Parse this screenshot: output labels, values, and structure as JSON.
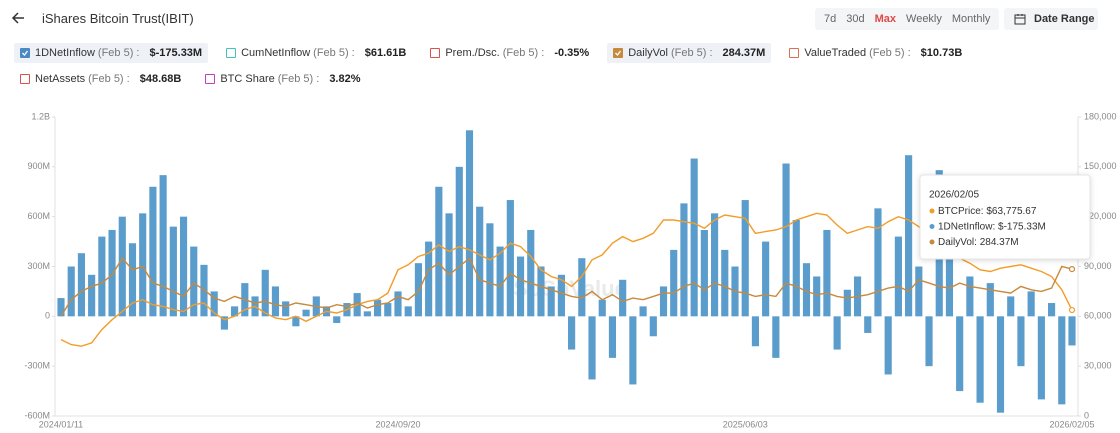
{
  "header": {
    "title": "iShares Bitcoin Trust(IBIT)",
    "range_buttons": [
      {
        "label": "7d",
        "active": false
      },
      {
        "label": "30d",
        "active": false
      },
      {
        "label": "Max",
        "active": true
      },
      {
        "label": "Weekly",
        "active": false
      },
      {
        "label": "Monthly",
        "active": false
      }
    ],
    "date_range": "Date Range"
  },
  "legend_chips": [
    {
      "label": "1DNetInflow",
      "date": "(Feb 5) :",
      "value": "$-175.33M",
      "checked": true,
      "color": "#4a8ac4"
    },
    {
      "label": "CumNetInflow",
      "date": "(Feb 5) :",
      "value": "$61.61B",
      "checked": false,
      "color": "#45c1c4"
    },
    {
      "label": "Prem./Dsc.",
      "date": "(Feb 5) :",
      "value": "-0.35%",
      "checked": false,
      "color": "#d9534f"
    },
    {
      "label": "DailyVol",
      "date": "(Feb 5) :",
      "value": "284.37M",
      "checked": true,
      "color": "#c7893c"
    },
    {
      "label": "ValueTraded",
      "date": "(Feb 5) :",
      "value": "$10.73B",
      "checked": false,
      "color": "#d9704f"
    },
    {
      "label": "NetAssets",
      "date": "(Feb 5) :",
      "value": "$48.68B",
      "checked": false,
      "color": "#d9534f"
    },
    {
      "label": "BTC Share",
      "date": "(Feb 5) :",
      "value": "3.82%",
      "checked": false,
      "color": "#c040c0"
    }
  ],
  "chart_data": {
    "type": "bar",
    "watermark": "SoSoValue",
    "categories": [
      "2024/01/11",
      null,
      null,
      null,
      null,
      null,
      null,
      null,
      null,
      null,
      null,
      null,
      null,
      null,
      null,
      null,
      null,
      null,
      null,
      null,
      null,
      null,
      null,
      null,
      null,
      null,
      null,
      null,
      null,
      null,
      null,
      null,
      null,
      "2024/09/20",
      null,
      null,
      null,
      null,
      null,
      null,
      null,
      null,
      null,
      null,
      null,
      null,
      null,
      null,
      null,
      null,
      null,
      null,
      null,
      null,
      null,
      null,
      null,
      null,
      null,
      null,
      null,
      null,
      null,
      null,
      null,
      null,
      null,
      "2025/06/03",
      null,
      null,
      null,
      null,
      null,
      null,
      null,
      null,
      null,
      null,
      null,
      null,
      null,
      null,
      null,
      null,
      null,
      null,
      null,
      null,
      null,
      null,
      null,
      null,
      null,
      null,
      null,
      null,
      null,
      null,
      null,
      "2026/02/05"
    ],
    "ylim": [
      -600,
      1200
    ],
    "yticks": [
      {
        "value": -600,
        "label": "-600M"
      },
      {
        "value": -300,
        "label": "-300M"
      },
      0,
      {
        "value": 300,
        "label": "300M"
      },
      {
        "value": 600,
        "label": "600M"
      },
      {
        "value": 900,
        "label": "900M"
      },
      {
        "value": 1200,
        "label": "1.2B"
      }
    ],
    "y2lim": [
      0,
      180000
    ],
    "y2ticks": [
      0,
      {
        "value": 30000,
        "label": "30,000"
      },
      {
        "value": 60000,
        "label": "60,000"
      },
      {
        "value": 90000,
        "label": "90,000"
      },
      {
        "value": 120000,
        "label": "120,000"
      },
      {
        "value": 150000,
        "label": "150,000"
      },
      {
        "value": 180000,
        "label": "180,000"
      }
    ],
    "grid": false,
    "series": [
      {
        "name": "1DNetInflow",
        "type": "bar",
        "color": "#5a9ccc",
        "values": [
          110,
          300,
          380,
          250,
          480,
          520,
          600,
          440,
          620,
          780,
          850,
          540,
          600,
          420,
          310,
          150,
          -80,
          60,
          200,
          120,
          280,
          180,
          90,
          -60,
          40,
          120,
          60,
          -40,
          80,
          140,
          30,
          100,
          80,
          150,
          60,
          320,
          450,
          780,
          620,
          900,
          1120,
          660,
          560,
          420,
          700,
          360,
          520,
          300,
          180,
          250,
          -200,
          350,
          -380,
          100,
          -250,
          220,
          -410,
          60,
          -120,
          180,
          400,
          680,
          950,
          520,
          620,
          400,
          300,
          700,
          -180,
          450,
          -250,
          920,
          580,
          320,
          240,
          520,
          -200,
          160,
          240,
          -100,
          650,
          -350,
          480,
          970,
          300,
          -300,
          880,
          480,
          -450,
          240,
          -520,
          200,
          -580,
          120,
          -300,
          150,
          -500,
          80,
          -530,
          -175.33
        ]
      },
      {
        "name": "BTCPrice",
        "type": "line",
        "axis": "y2",
        "color": "#f39c28",
        "values": [
          46000,
          43000,
          42000,
          44000,
          52000,
          58000,
          63000,
          68000,
          70000,
          67000,
          66000,
          64000,
          63000,
          67000,
          68000,
          62000,
          58000,
          60000,
          64000,
          66000,
          62000,
          59000,
          58000,
          60000,
          57000,
          60000,
          63000,
          62000,
          64000,
          67000,
          69000,
          70000,
          74000,
          88000,
          91000,
          96000,
          98000,
          103000,
          99000,
          102000,
          100000,
          97000,
          94000,
          98000,
          104000,
          102000,
          96000,
          88000,
          84000,
          82000,
          78000,
          84000,
          94000,
          97000,
          104000,
          108000,
          105000,
          107000,
          110000,
          118000,
          118000,
          117000,
          116000,
          113000,
          118000,
          121000,
          120000,
          119000,
          110000,
          111000,
          112000,
          114000,
          118000,
          120000,
          122000,
          121000,
          115000,
          110000,
          112000,
          114000,
          113000,
          117000,
          120000,
          118000,
          114000,
          107000,
          104000,
          98000,
          95000,
          92000,
          88000,
          87000,
          89000,
          90000,
          91000,
          89000,
          87000,
          84000,
          76000,
          63775.67
        ]
      },
      {
        "name": "DailyVol",
        "type": "line",
        "color": "#c7893c",
        "values": [
          0,
          100,
          150,
          180,
          200,
          250,
          350,
          280,
          300,
          200,
          180,
          150,
          120,
          200,
          160,
          110,
          90,
          120,
          100,
          80,
          90,
          70,
          60,
          80,
          70,
          60,
          50,
          70,
          60,
          80,
          50,
          70,
          80,
          120,
          100,
          150,
          280,
          320,
          250,
          300,
          350,
          220,
          200,
          180,
          260,
          220,
          200,
          180,
          160,
          140,
          120,
          110,
          150,
          100,
          130,
          90,
          110,
          100,
          120,
          140,
          140,
          180,
          200,
          160,
          200,
          180,
          150,
          140,
          120,
          130,
          120,
          200,
          180,
          150,
          130,
          140,
          120,
          110,
          120,
          130,
          150,
          170,
          180,
          150,
          220,
          200,
          180,
          170,
          200,
          180,
          170,
          160,
          150,
          140,
          180,
          160,
          150,
          170,
          300,
          284.37
        ]
      }
    ],
    "tooltip": {
      "title": "2026/02/05",
      "values": [
        ": $63,775.67",
        ": $-175.33M",
        ": 284.37M"
      ]
    }
  }
}
